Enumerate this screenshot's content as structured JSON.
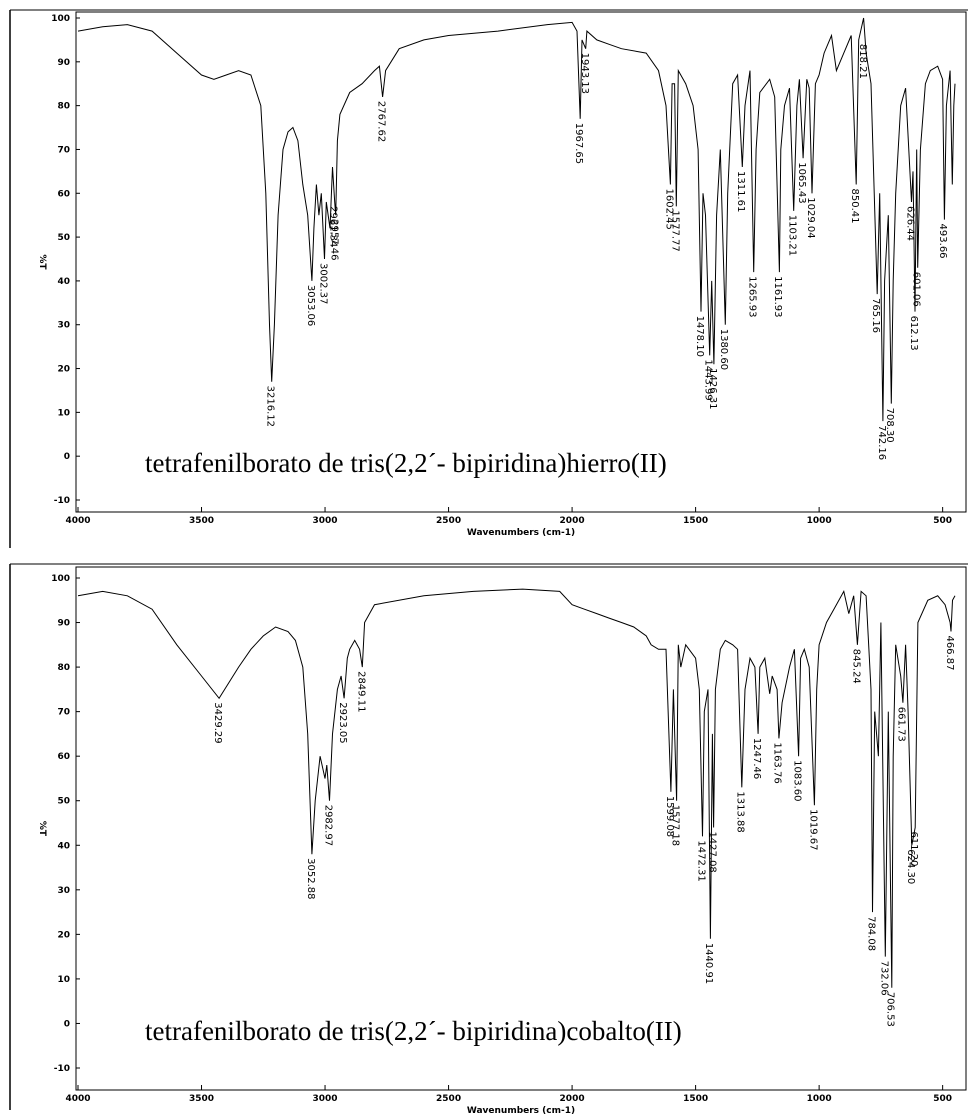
{
  "chart_data": [
    {
      "type": "line",
      "caption": "tetrafenilborato de tris(2,2´- bipiridina)hierro(II)",
      "xlabel": "Wavenumbers (cm-1)",
      "ylabel": "%T",
      "xlim": [
        4000,
        450
      ],
      "ylim": [
        -10,
        100
      ],
      "xticks": [
        4000,
        3500,
        3000,
        2500,
        2000,
        1500,
        1000,
        500
      ],
      "yticks": [
        -10,
        0,
        10,
        20,
        30,
        40,
        50,
        60,
        70,
        80,
        90,
        100
      ],
      "x": [
        4000,
        3900,
        3800,
        3700,
        3600,
        3500,
        3450,
        3400,
        3350,
        3300,
        3260,
        3240,
        3225,
        3216,
        3205,
        3190,
        3170,
        3150,
        3130,
        3110,
        3090,
        3070,
        3053,
        3045,
        3035,
        3025,
        3015,
        3002,
        2995,
        2980,
        2970,
        2961,
        2957,
        2950,
        2940,
        2900,
        2850,
        2800,
        2780,
        2767,
        2755,
        2700,
        2600,
        2500,
        2300,
        2100,
        2000,
        1980,
        1967,
        1960,
        1945,
        1940,
        1900,
        1850,
        1800,
        1700,
        1650,
        1620,
        1602,
        1595,
        1585,
        1578,
        1570,
        1540,
        1510,
        1490,
        1478,
        1470,
        1460,
        1443,
        1435,
        1426,
        1415,
        1400,
        1390,
        1380,
        1370,
        1350,
        1330,
        1311,
        1300,
        1280,
        1265,
        1255,
        1240,
        1200,
        1180,
        1161,
        1155,
        1140,
        1120,
        1103,
        1090,
        1080,
        1065,
        1050,
        1040,
        1029,
        1015,
        1000,
        980,
        950,
        930,
        900,
        870,
        850,
        840,
        820,
        810,
        790,
        765,
        755,
        742,
        735,
        720,
        708,
        700,
        690,
        670,
        650,
        626,
        620,
        612,
        605,
        601,
        590,
        570,
        550,
        520,
        500,
        493,
        485,
        470,
        461,
        455,
        450
      ],
      "series": [
        {
          "color": "#000000",
          "values": [
            97,
            98,
            98.5,
            97,
            92,
            87,
            86,
            87,
            88,
            87,
            80,
            60,
            30,
            17,
            30,
            55,
            70,
            74,
            75,
            72,
            62,
            55,
            40,
            52,
            62,
            55,
            60,
            45,
            58,
            52,
            66,
            58,
            55,
            72,
            78,
            83,
            85,
            88,
            89,
            82,
            88,
            93,
            95,
            96,
            97,
            98.5,
            99,
            97,
            77,
            95,
            93,
            97,
            95,
            94,
            93,
            92,
            88,
            80,
            62,
            85,
            85,
            57,
            88,
            85,
            80,
            70,
            33,
            60,
            55,
            23,
            40,
            21,
            55,
            70,
            50,
            30,
            60,
            85,
            87,
            66,
            80,
            88,
            42,
            70,
            83,
            86,
            82,
            42,
            70,
            80,
            84,
            56,
            80,
            86,
            68,
            86,
            84,
            60,
            85,
            87,
            92,
            96,
            88,
            92,
            96,
            62,
            95,
            100,
            92,
            85,
            37,
            60,
            8,
            40,
            55,
            12,
            40,
            60,
            80,
            84,
            58,
            65,
            33,
            70,
            43,
            70,
            85,
            88,
            89,
            86,
            54,
            80,
            88,
            62,
            80,
            85
          ]
        }
      ],
      "annotations": [
        {
          "x": 3216.12,
          "label": "3216.12",
          "y": 17
        },
        {
          "x": 3053.06,
          "label": "3053.06",
          "y": 40
        },
        {
          "x": 3002.37,
          "label": "3002.37",
          "y": 45
        },
        {
          "x": 2961.34,
          "label": "2961.34",
          "y": 58
        },
        {
          "x": 2957.46,
          "label": "2957.46",
          "y": 55
        },
        {
          "x": 2767.62,
          "label": "2767.62",
          "y": 82
        },
        {
          "x": 1967.65,
          "label": "1967.65",
          "y": 77
        },
        {
          "x": 1943.13,
          "label": "1943.13",
          "y": 93
        },
        {
          "x": 1602.45,
          "label": "1602.45",
          "y": 62
        },
        {
          "x": 1577.77,
          "label": "1577.77",
          "y": 57
        },
        {
          "x": 1478.1,
          "label": "1478.10",
          "y": 33
        },
        {
          "x": 1443.99,
          "label": "1443.99",
          "y": 23
        },
        {
          "x": 1426.31,
          "label": "1426.31",
          "y": 21
        },
        {
          "x": 1380.6,
          "label": "1380.60",
          "y": 30
        },
        {
          "x": 1311.61,
          "label": "1311.61",
          "y": 66
        },
        {
          "x": 1265.93,
          "label": "1265.93",
          "y": 42
        },
        {
          "x": 1161.93,
          "label": "1161.93",
          "y": 42
        },
        {
          "x": 1103.21,
          "label": "1103.21",
          "y": 56
        },
        {
          "x": 1065.43,
          "label": "1065.43",
          "y": 68
        },
        {
          "x": 1029.04,
          "label": "1029.04",
          "y": 60
        },
        {
          "x": 850.41,
          "label": "850.41",
          "y": 62
        },
        {
          "x": 818.21,
          "label": "818.21",
          "y": 95
        },
        {
          "x": 765.16,
          "label": "765.16",
          "y": 37
        },
        {
          "x": 742.16,
          "label": "742.16",
          "y": 8
        },
        {
          "x": 708.3,
          "label": "708.30",
          "y": 12
        },
        {
          "x": 626.44,
          "label": "626.44",
          "y": 58
        },
        {
          "x": 612.13,
          "label": "612.13",
          "y": 33
        },
        {
          "x": 601.06,
          "label": "601.06",
          "y": 43
        },
        {
          "x": 493.66,
          "label": "493.66",
          "y": 54
        }
      ]
    },
    {
      "type": "line",
      "caption": "tetrafenilborato de tris(2,2´- bipiridina)cobalto(II)",
      "xlabel": "Wavenumbers (cm-1)",
      "ylabel": "%T",
      "xlim": [
        4000,
        450
      ],
      "ylim": [
        -10,
        100
      ],
      "xticks": [
        4000,
        3500,
        3000,
        2500,
        2000,
        1500,
        1000,
        500
      ],
      "yticks": [
        -10,
        0,
        10,
        20,
        30,
        40,
        50,
        60,
        70,
        80,
        90,
        100
      ],
      "x": [
        4000,
        3900,
        3800,
        3700,
        3600,
        3500,
        3429,
        3350,
        3300,
        3250,
        3200,
        3150,
        3120,
        3090,
        3070,
        3053,
        3040,
        3020,
        3000,
        2993,
        2982,
        2970,
        2950,
        2935,
        2923,
        2910,
        2900,
        2880,
        2860,
        2849,
        2840,
        2800,
        2600,
        2400,
        2200,
        2050,
        2000,
        1950,
        1900,
        1850,
        1800,
        1750,
        1700,
        1680,
        1650,
        1620,
        1600,
        1590,
        1577,
        1570,
        1560,
        1540,
        1500,
        1485,
        1472,
        1465,
        1450,
        1440,
        1432,
        1427,
        1420,
        1400,
        1380,
        1350,
        1330,
        1313,
        1300,
        1280,
        1260,
        1247,
        1240,
        1220,
        1200,
        1190,
        1170,
        1163,
        1150,
        1120,
        1100,
        1083,
        1075,
        1060,
        1040,
        1019,
        1010,
        1000,
        970,
        940,
        900,
        880,
        860,
        845,
        830,
        810,
        790,
        784,
        775,
        760,
        750,
        732,
        720,
        706,
        700,
        690,
        670,
        661,
        650,
        640,
        625,
        611,
        600,
        560,
        520,
        490,
        470,
        466,
        460,
        450
      ],
      "series": [
        {
          "color": "#000000",
          "values": [
            96,
            97,
            96,
            93,
            85,
            78,
            73,
            80,
            84,
            87,
            89,
            88,
            86,
            80,
            65,
            38,
            50,
            60,
            55,
            58,
            50,
            65,
            75,
            78,
            73,
            82,
            84,
            86,
            84,
            80,
            90,
            94,
            96,
            97,
            97.5,
            97,
            94,
            93,
            92,
            91,
            90,
            89,
            87,
            85,
            84,
            84,
            52,
            75,
            50,
            85,
            80,
            85,
            82,
            75,
            42,
            70,
            75,
            19,
            65,
            44,
            75,
            84,
            86,
            85,
            84,
            53,
            75,
            82,
            80,
            65,
            80,
            82,
            74,
            78,
            75,
            64,
            72,
            80,
            84,
            60,
            82,
            84,
            80,
            49,
            75,
            85,
            90,
            93,
            97,
            92,
            96,
            85,
            97,
            96,
            75,
            25,
            70,
            60,
            90,
            15,
            70,
            8,
            60,
            85,
            78,
            72,
            85,
            70,
            40,
            44,
            90,
            95,
            96,
            94,
            90,
            88,
            95,
            96
          ]
        }
      ],
      "annotations": [
        {
          "x": 3429.29,
          "label": "3429.29",
          "y": 73
        },
        {
          "x": 3052.88,
          "label": "3052.88",
          "y": 38
        },
        {
          "x": 2982.97,
          "label": "2982.97",
          "y": 50
        },
        {
          "x": 2923.05,
          "label": "2923.05",
          "y": 73
        },
        {
          "x": 2849.11,
          "label": "2849.11",
          "y": 80
        },
        {
          "x": 1599.08,
          "label": "1599.08",
          "y": 52
        },
        {
          "x": 1577.18,
          "label": "1577.18",
          "y": 50
        },
        {
          "x": 1472.31,
          "label": "1472.31",
          "y": 42
        },
        {
          "x": 1440.91,
          "label": "1440.91",
          "y": 19
        },
        {
          "x": 1427.08,
          "label": "1427.08",
          "y": 44
        },
        {
          "x": 1313.88,
          "label": "1313.88",
          "y": 53
        },
        {
          "x": 1247.46,
          "label": "1247.46",
          "y": 65
        },
        {
          "x": 1163.76,
          "label": "1163.76",
          "y": 64
        },
        {
          "x": 1083.6,
          "label": "1083.60",
          "y": 60
        },
        {
          "x": 1019.67,
          "label": "1019.67",
          "y": 49
        },
        {
          "x": 845.24,
          "label": "845.24",
          "y": 85
        },
        {
          "x": 784.08,
          "label": "784.08",
          "y": 25
        },
        {
          "x": 732.06,
          "label": "732.06",
          "y": 15
        },
        {
          "x": 706.53,
          "label": "706.53",
          "y": 8
        },
        {
          "x": 661.73,
          "label": "661.73",
          "y": 72
        },
        {
          "x": 624.3,
          "label": "624.30",
          "y": 40
        },
        {
          "x": 611.2,
          "label": "611.20",
          "y": 44
        },
        {
          "x": 466.87,
          "label": "466.87",
          "y": 88
        }
      ]
    }
  ]
}
